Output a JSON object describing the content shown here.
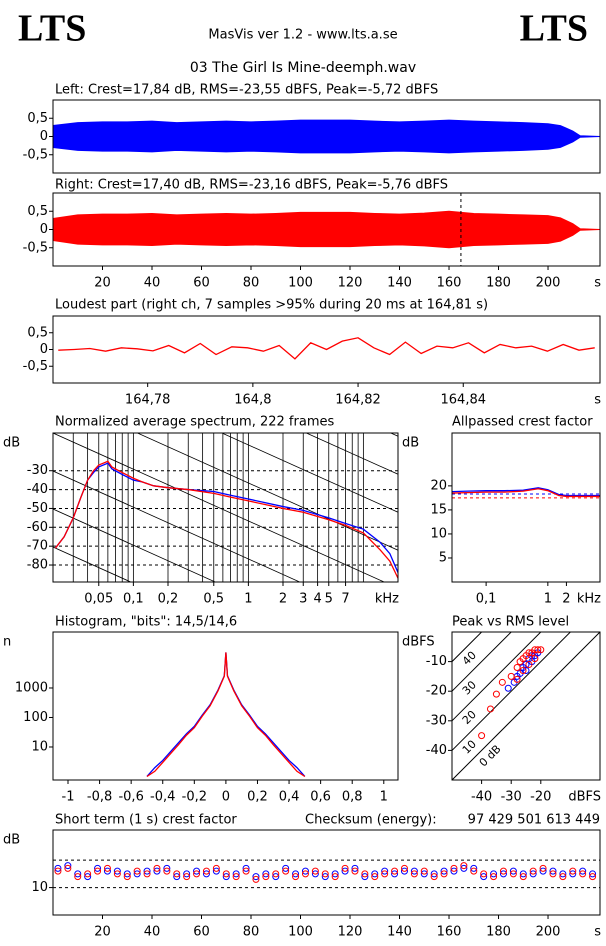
{
  "header": {
    "logo_left": "LTS",
    "logo_right": "LTS",
    "version": "MasVis ver 1.2 - www.lts.a.se",
    "file": "03 The Girl Is Mine-deemph.wav"
  },
  "chart_data": [
    {
      "type": "waveform",
      "title": "Left: Crest=17,84 dB, RMS=-23,55 dBFS, Peak=-5,72 dBFS",
      "xlim": [
        0,
        221
      ],
      "ylim": [
        -1,
        1
      ],
      "yticks": [
        {
          "value": 0.5,
          "label": "0,5"
        },
        0,
        {
          "value": -0.5,
          "label": "-0,5"
        }
      ],
      "x": [
        0,
        10,
        20,
        30,
        40,
        50,
        60,
        70,
        80,
        90,
        100,
        110,
        120,
        130,
        140,
        150,
        160,
        170,
        180,
        190,
        200,
        205,
        210,
        213,
        221
      ],
      "series": [
        {
          "color": "#0000ff",
          "values": [
            0.3,
            0.38,
            0.4,
            0.4,
            0.42,
            0.38,
            0.4,
            0.42,
            0.4,
            0.42,
            0.45,
            0.45,
            0.45,
            0.42,
            0.4,
            0.42,
            0.45,
            0.42,
            0.4,
            0.38,
            0.35,
            0.3,
            0.15,
            0.02,
            0
          ]
        }
      ]
    },
    {
      "type": "waveform",
      "title": "Right: Crest=17,40 dB, RMS=-23,16 dBFS, Peak=-5,76 dBFS",
      "xlim": [
        0,
        221
      ],
      "ylim": [
        -1,
        1
      ],
      "xlabel": "s",
      "marker_x": 164.81,
      "yticks": [
        {
          "value": 0.5,
          "label": "0,5"
        },
        0,
        {
          "value": -0.5,
          "label": "-0,5"
        }
      ],
      "xticks": [
        20,
        40,
        60,
        80,
        100,
        120,
        140,
        160,
        180,
        200
      ],
      "x": [
        0,
        10,
        20,
        30,
        40,
        50,
        60,
        70,
        80,
        90,
        100,
        110,
        120,
        130,
        140,
        150,
        160,
        170,
        180,
        190,
        200,
        205,
        210,
        213,
        221
      ],
      "series": [
        {
          "color": "#ff0000",
          "values": [
            0.3,
            0.4,
            0.42,
            0.42,
            0.44,
            0.4,
            0.42,
            0.44,
            0.42,
            0.44,
            0.47,
            0.47,
            0.47,
            0.44,
            0.42,
            0.45,
            0.5,
            0.44,
            0.42,
            0.4,
            0.38,
            0.32,
            0.16,
            0.02,
            0
          ]
        }
      ]
    },
    {
      "type": "line",
      "title": "Loudest part (right ch, 7 samples >95% during 20 ms at 164,81 s)",
      "xlim": [
        164.762,
        164.866
      ],
      "ylim": [
        -1,
        1
      ],
      "xlabel": "s",
      "yticks": [
        {
          "value": 0.5,
          "label": "0,5"
        },
        0,
        {
          "value": -0.5,
          "label": "-0,5"
        }
      ],
      "xticks": [
        {
          "value": 164.78,
          "label": "164,78"
        },
        {
          "value": 164.8,
          "label": "164,8"
        },
        {
          "value": 164.82,
          "label": "164,82"
        },
        {
          "value": 164.84,
          "label": "164,84"
        }
      ],
      "x": [
        164.763,
        164.766,
        164.769,
        164.772,
        164.775,
        164.778,
        164.781,
        164.784,
        164.787,
        164.79,
        164.793,
        164.796,
        164.799,
        164.802,
        164.805,
        164.808,
        164.811,
        164.814,
        164.817,
        164.82,
        164.823,
        164.826,
        164.829,
        164.832,
        164.835,
        164.838,
        164.841,
        164.844,
        164.847,
        164.85,
        164.853,
        164.856,
        164.859,
        164.862,
        164.865
      ],
      "series": [
        {
          "color": "#ff0000",
          "values": [
            -0.02,
            0.0,
            0.03,
            -0.05,
            0.05,
            0.02,
            -0.04,
            0.12,
            -0.1,
            0.18,
            -0.15,
            0.08,
            0.05,
            -0.05,
            0.12,
            -0.28,
            0.2,
            0.0,
            0.25,
            0.35,
            0.05,
            -0.15,
            0.22,
            -0.12,
            0.1,
            0.05,
            0.2,
            -0.1,
            0.15,
            0.05,
            0.1,
            -0.05,
            0.15,
            -0.02,
            0.05
          ]
        }
      ]
    },
    {
      "type": "line",
      "title": "Normalized average spectrum, 222 frames",
      "ylabel": "dB",
      "xlabel": "kHz",
      "xlog": true,
      "grid": true,
      "minor_grid": true,
      "slope_lines": true,
      "xlim": [
        0.02,
        20
      ],
      "ylim": [
        -89,
        -10
      ],
      "yticks": [
        -30,
        -40,
        -50,
        -60,
        -70,
        -80
      ],
      "xticks": [
        {
          "value": 0.05,
          "label": "0,05"
        },
        {
          "value": 0.1,
          "label": "0,1"
        },
        {
          "value": 0.2,
          "label": "0,2"
        },
        {
          "value": 0.5,
          "label": "0,5"
        },
        1,
        2,
        3,
        4,
        5,
        7
      ],
      "x": [
        0.021,
        0.025,
        0.03,
        0.035,
        0.04,
        0.045,
        0.05,
        0.06,
        0.065,
        0.08,
        0.1,
        0.12,
        0.15,
        0.2,
        0.3,
        0.5,
        0.7,
        1,
        2,
        3,
        5,
        7,
        10,
        14,
        17,
        20
      ],
      "series": [
        {
          "color": "#0000ff",
          "values": [
            -71,
            -65,
            -55,
            -44,
            -35,
            -31,
            -28,
            -26,
            -29,
            -32,
            -35,
            -36,
            -38,
            -39,
            -40,
            -41,
            -43,
            -45,
            -49,
            -51,
            -55,
            -58,
            -61,
            -68,
            -74,
            -84
          ]
        },
        {
          "color": "#ff0000",
          "values": [
            -71,
            -65,
            -55,
            -44,
            -35,
            -30,
            -27,
            -25,
            -28,
            -31,
            -34,
            -36,
            -38,
            -39,
            -40,
            -42,
            -44,
            -46,
            -50,
            -52,
            -56,
            -59,
            -63,
            -72,
            -78,
            -87
          ]
        }
      ]
    },
    {
      "type": "line",
      "title": "Allpassed crest factor",
      "ylabel": "dB",
      "xlabel": "kHz",
      "xlog": true,
      "xlim": [
        0.028,
        7
      ],
      "ylim": [
        0,
        31
      ],
      "yticks": [
        20,
        15,
        10,
        5
      ],
      "xticks": [
        {
          "value": 0.1,
          "label": "0,1"
        },
        1,
        2
      ],
      "x": [
        0.028,
        0.05,
        0.1,
        0.2,
        0.4,
        0.7,
        1,
        1.5,
        2,
        3,
        5,
        7
      ],
      "series": [
        {
          "color": "#0000ff",
          "reference": 18.3,
          "values": [
            18.8,
            18.9,
            19,
            19,
            19.1,
            19.6,
            19.2,
            18.2,
            18,
            18,
            18,
            18
          ]
        },
        {
          "color": "#ff0000",
          "reference": 17.5,
          "values": [
            18.5,
            18.6,
            18.7,
            18.7,
            18.9,
            19.4,
            19,
            18,
            17.8,
            17.8,
            17.8,
            17.8
          ]
        }
      ]
    },
    {
      "type": "line",
      "title": "Histogram, \"bits\": 14,5/14,6",
      "ylabel": "n",
      "ylog": true,
      "xlim": [
        -1.095,
        1.09
      ],
      "ylim": [
        0.76,
        79000
      ],
      "yticks": [
        1000,
        100,
        10
      ],
      "xticks": [
        -1,
        {
          "value": -0.8,
          "label": "-0,8"
        },
        {
          "value": -0.6,
          "label": "-0,6"
        },
        {
          "value": -0.4,
          "label": "-0,4"
        },
        {
          "value": -0.2,
          "label": "-0,2"
        },
        0,
        {
          "value": 0.2,
          "label": "0,2"
        },
        {
          "value": 0.4,
          "label": "0,4"
        },
        {
          "value": 0.6,
          "label": "0,6"
        },
        {
          "value": 0.8,
          "label": "0,8"
        },
        1
      ],
      "x": [
        -0.5,
        -0.45,
        -0.4,
        -0.35,
        -0.3,
        -0.25,
        -0.2,
        -0.15,
        -0.1,
        -0.05,
        -0.01,
        0,
        0.01,
        0.05,
        0.1,
        0.15,
        0.2,
        0.25,
        0.3,
        0.35,
        0.4,
        0.45,
        0.5
      ],
      "series": [
        {
          "color": "#0000ff",
          "values": [
            1,
            2,
            3.5,
            7,
            14,
            28,
            50,
            120,
            270,
            850,
            2600,
            16000,
            2600,
            850,
            270,
            120,
            50,
            28,
            14,
            7,
            3.5,
            2,
            1
          ]
        },
        {
          "color": "#ff0000",
          "values": [
            1,
            1.5,
            3,
            6,
            12,
            25,
            45,
            110,
            250,
            800,
            2500,
            16000,
            2500,
            800,
            250,
            110,
            45,
            25,
            12,
            6,
            3,
            1.5,
            1
          ]
        }
      ]
    },
    {
      "type": "scatter",
      "title": "Peak vs RMS level",
      "ylabel": "dBFS",
      "xlabel": "dBFS",
      "xlim": [
        -50,
        0
      ],
      "ylim": [
        -50,
        0
      ],
      "yticks": [
        -10,
        -20,
        -30,
        -40
      ],
      "xticks": [
        -40,
        -30,
        -20
      ],
      "crest_lines": [
        {
          "value": 0,
          "label": "0 dB"
        },
        10,
        20,
        30,
        40
      ],
      "series": [
        {
          "color": "#0000ff",
          "x": [
            -31,
            -29,
            -27,
            -26,
            -25,
            -24,
            -23,
            -22,
            -21,
            -28,
            -25,
            -23
          ],
          "values": [
            -19,
            -17,
            -14,
            -12,
            -11,
            -9,
            -8,
            -8,
            -7,
            -15,
            -13,
            -10
          ]
        },
        {
          "color": "#ff0000",
          "x": [
            -40,
            -37,
            -35,
            -33,
            -30,
            -28,
            -27,
            -26,
            -25,
            -24,
            -23,
            -22,
            -21,
            -24,
            -26,
            -28,
            -22,
            -20
          ],
          "values": [
            -35,
            -26,
            -21,
            -17,
            -15,
            -12,
            -10,
            -9,
            -8,
            -7,
            -7,
            -6,
            -6,
            -11,
            -13,
            -16,
            -9,
            -6
          ]
        }
      ]
    },
    {
      "type": "scatter",
      "title": "Short term (1 s) crest factor",
      "ylabel": "dB",
      "xlabel": "s",
      "checksum_label": "Checksum (energy):",
      "checksum": "97 429 501 613 449",
      "xlim": [
        0,
        221
      ],
      "ylim": [
        0,
        31
      ],
      "yticks": [
        10
      ],
      "reference_lines": [
        10,
        20
      ],
      "xticks": [
        20,
        40,
        60,
        80,
        100,
        120,
        140,
        160,
        180,
        200
      ],
      "x": [
        2,
        6,
        10,
        14,
        18,
        22,
        26,
        30,
        34,
        38,
        42,
        46,
        50,
        54,
        58,
        62,
        66,
        70,
        74,
        78,
        82,
        86,
        90,
        94,
        98,
        102,
        106,
        110,
        114,
        118,
        122,
        126,
        130,
        134,
        138,
        142,
        146,
        150,
        154,
        158,
        162,
        166,
        170,
        174,
        178,
        182,
        186,
        190,
        194,
        198,
        202,
        206,
        210,
        214,
        218
      ],
      "series": [
        {
          "color": "#0000ff",
          "values": [
            17,
            18,
            15,
            14,
            17,
            16,
            16,
            15,
            15,
            16,
            16,
            17,
            14,
            15,
            16,
            15,
            16,
            14,
            15,
            17,
            14,
            15,
            14,
            17,
            15,
            16,
            15,
            14,
            15,
            16,
            17,
            14,
            15,
            16,
            15,
            16,
            16,
            15,
            15,
            16,
            16,
            17,
            17,
            14,
            15,
            15,
            16,
            15,
            15,
            16,
            16,
            15,
            15,
            16,
            15
          ]
        },
        {
          "color": "#ff0000",
          "values": [
            16,
            17,
            14,
            15,
            16,
            17,
            15,
            14,
            16,
            15,
            17,
            16,
            15,
            14,
            15,
            16,
            17,
            15,
            14,
            16,
            13,
            14,
            15,
            16,
            14,
            15,
            16,
            15,
            14,
            17,
            16,
            15,
            14,
            15,
            16,
            17,
            15,
            16,
            14,
            15,
            17,
            18,
            16,
            15,
            14,
            16,
            15,
            14,
            16,
            17,
            15,
            14,
            16,
            15,
            14
          ]
        }
      ]
    }
  ]
}
